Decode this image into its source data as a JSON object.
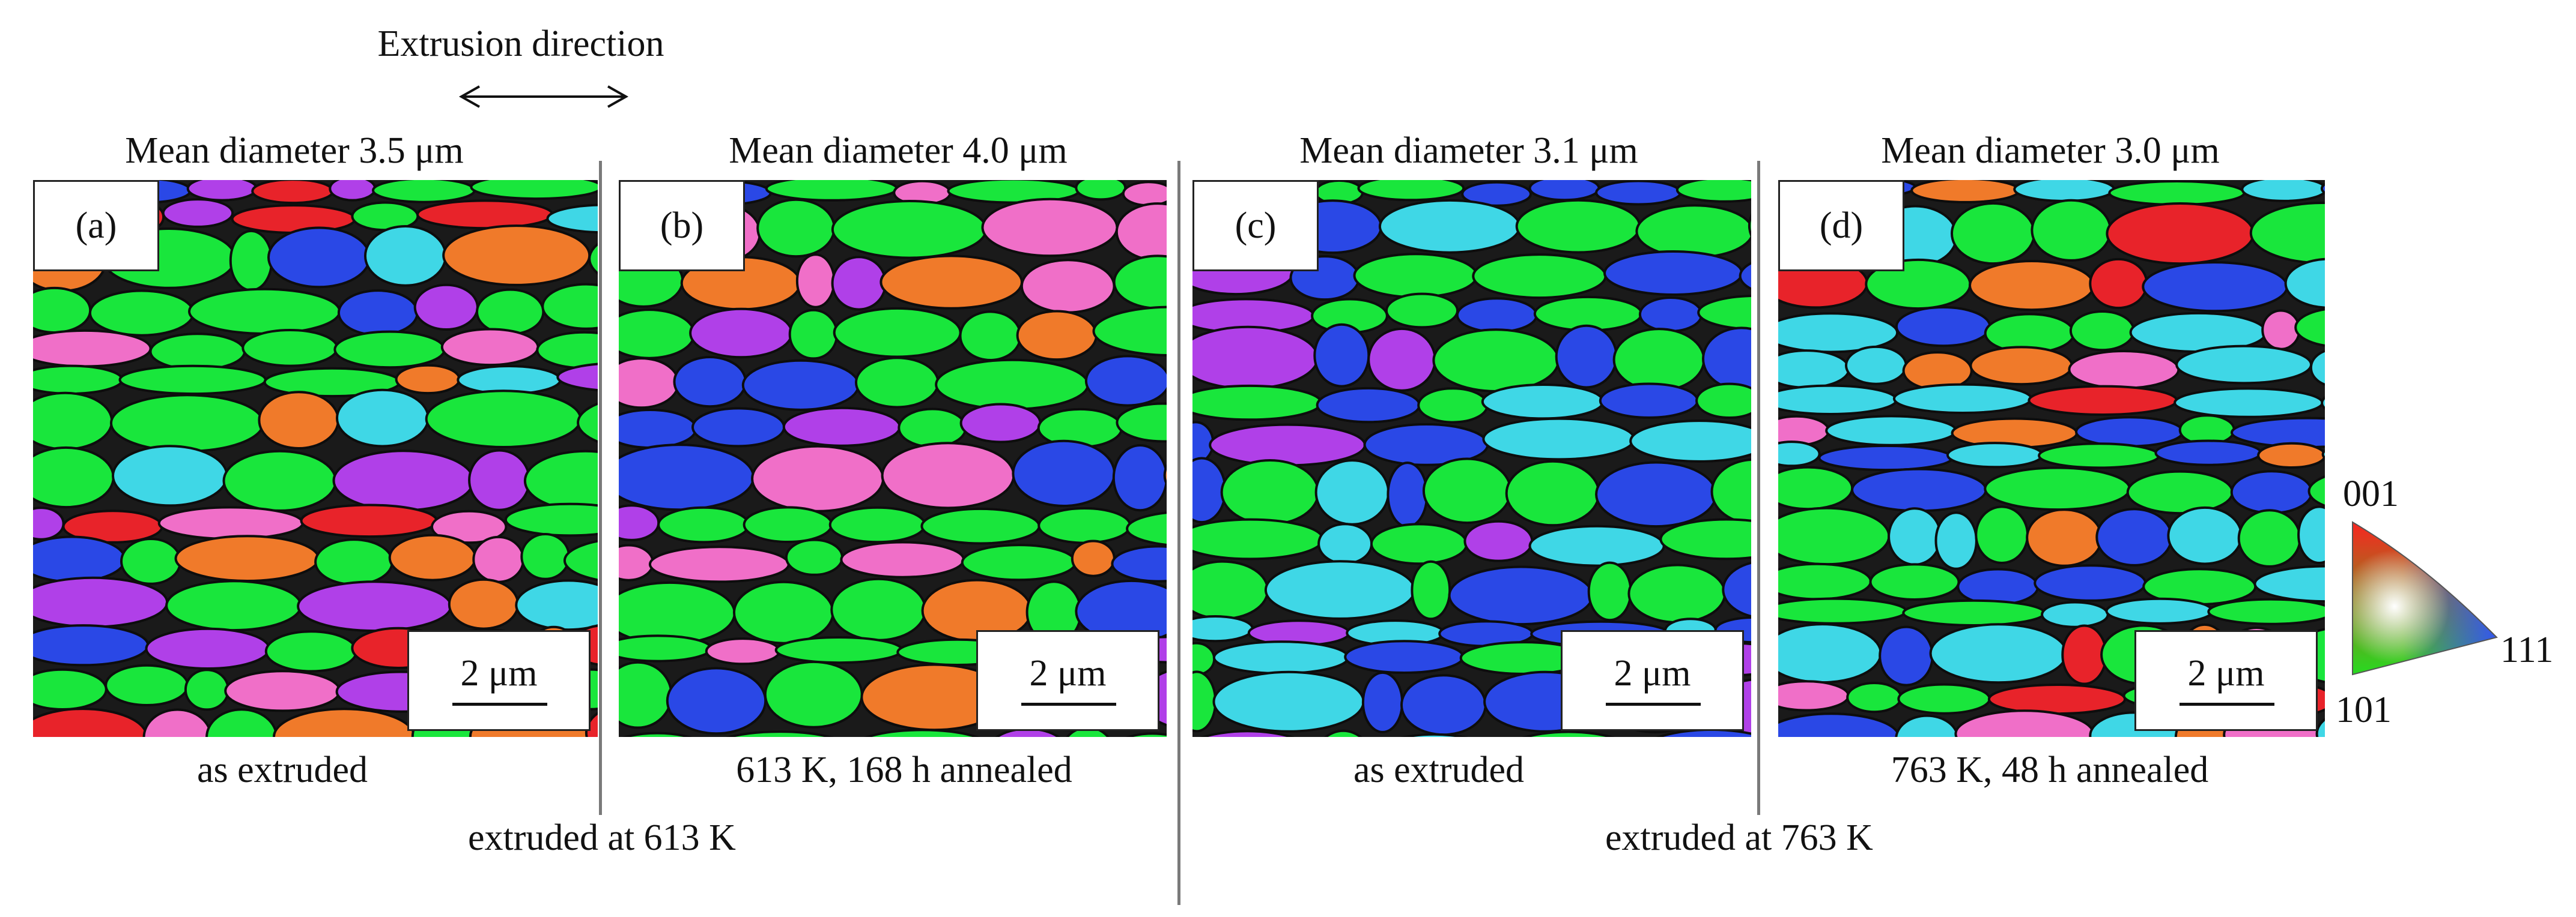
{
  "header": {
    "direction_label": "Extrusion direction"
  },
  "panels": [
    {
      "letter": "(a)",
      "mean": "Mean diameter 3.5 μm",
      "scale": "2 μm",
      "caption": "as extruded"
    },
    {
      "letter": "(b)",
      "mean": "Mean diameter 4.0 μm",
      "scale": "2 μm",
      "caption": "613 K, 168 h annealed"
    },
    {
      "letter": "(c)",
      "mean": "Mean diameter 3.1 μm",
      "scale": "2 μm",
      "caption": "as extruded"
    },
    {
      "letter": "(d)",
      "mean": "Mean diameter 3.0 μm",
      "scale": "2 μm",
      "caption": "763 K, 48 h annealed"
    }
  ],
  "groups": [
    {
      "label": "extruded at 613 K"
    },
    {
      "label": "extruded at 763 K"
    }
  ],
  "legend": {
    "top": "001",
    "right": "111",
    "bottom": "101"
  },
  "colors": {
    "green": "#19e63c",
    "blue": "#2a48e6",
    "cyan": "#3fd7e6",
    "pink": "#f06fc8",
    "magenta": "#b040e8",
    "red": "#e8232a",
    "orange": "#f07a2a",
    "separator": "#7a7a7a"
  }
}
